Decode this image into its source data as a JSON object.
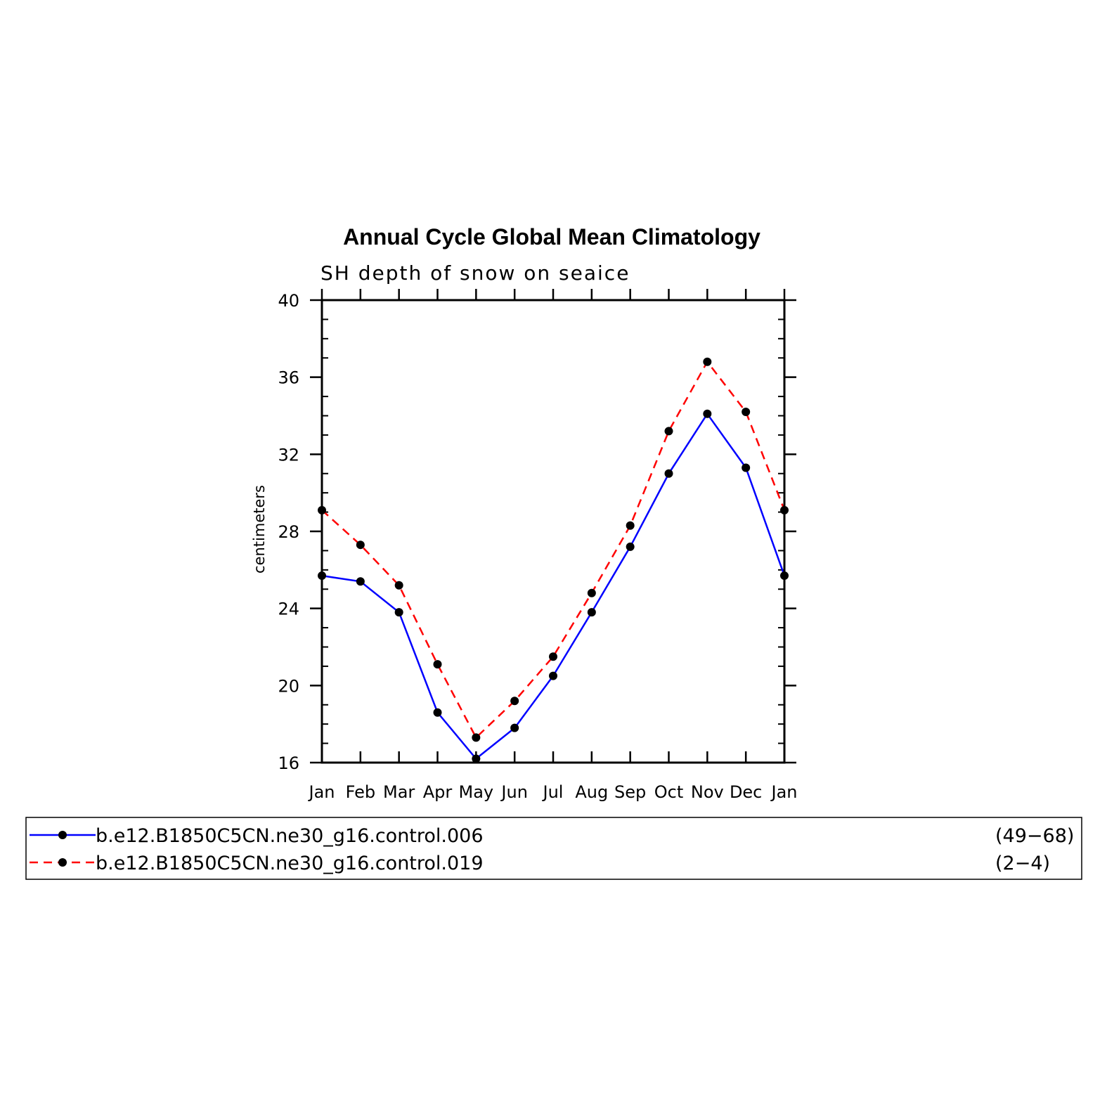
{
  "chart_data": {
    "type": "line",
    "title": "Annual Cycle Global Mean Climatology",
    "subtitle": "SH depth of snow on seaice",
    "xlabel": "",
    "ylabel": "centimeters",
    "categories": [
      "Jan",
      "Feb",
      "Mar",
      "Apr",
      "May",
      "Jun",
      "Jul",
      "Aug",
      "Sep",
      "Oct",
      "Nov",
      "Dec",
      "Jan"
    ],
    "ylim": [
      16,
      40
    ],
    "yticks": [
      "16",
      "20",
      "24",
      "28",
      "32",
      "36",
      "40"
    ],
    "grid": false,
    "legend_position": "bottom",
    "series": [
      {
        "name": "b.e12.B1850C5CN.ne30_g16.control.006",
        "range": "(49−68)",
        "color": "#0000ff",
        "style": "solid",
        "values": [
          25.7,
          25.4,
          23.8,
          18.6,
          16.2,
          17.8,
          20.5,
          23.8,
          27.2,
          31.0,
          34.1,
          31.3,
          25.7
        ]
      },
      {
        "name": "b.e12.B1850C5CN.ne30_g16.control.019",
        "range": "(2−4)",
        "color": "#ff0000",
        "style": "dashed",
        "values": [
          29.1,
          27.3,
          25.2,
          21.1,
          17.3,
          19.2,
          21.5,
          24.8,
          28.3,
          33.2,
          36.8,
          34.2,
          29.1
        ]
      }
    ]
  }
}
